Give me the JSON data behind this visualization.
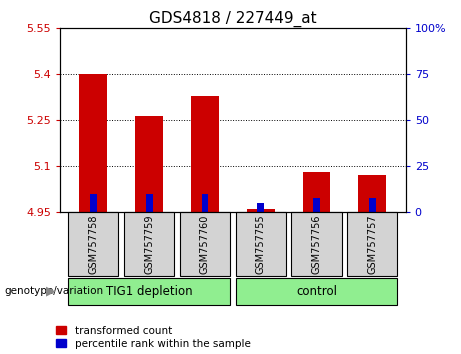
{
  "title": "GDS4818 / 227449_at",
  "samples": [
    "GSM757758",
    "GSM757759",
    "GSM757760",
    "GSM757755",
    "GSM757756",
    "GSM757757"
  ],
  "red_values": [
    5.4,
    5.265,
    5.33,
    4.962,
    5.082,
    5.072
  ],
  "blue_values_pct": [
    10,
    10,
    10,
    5,
    8,
    8
  ],
  "baseline": 4.95,
  "ylim_left": [
    4.95,
    5.55
  ],
  "ylim_right": [
    0,
    100
  ],
  "yticks_left": [
    4.95,
    5.1,
    5.25,
    5.4,
    5.55
  ],
  "yticks_right": [
    0,
    25,
    50,
    75,
    100
  ],
  "ytick_labels_left": [
    "4.95",
    "5.1",
    "5.25",
    "5.4",
    "5.55"
  ],
  "ytick_labels_right": [
    "0",
    "25",
    "50",
    "75",
    "100%"
  ],
  "red_color": "#cc0000",
  "blue_color": "#0000cc",
  "bar_width": 0.5,
  "blue_bar_width": 0.12,
  "group_colors": [
    "#90ee90",
    "#90ee90"
  ],
  "xlabel_left": "genotype/variation",
  "legend_labels": [
    "transformed count",
    "percentile rank within the sample"
  ],
  "title_fontsize": 11,
  "tick_fontsize": 8,
  "groups_info": [
    {
      "label": "TIG1 depletion",
      "xstart": 0,
      "xend": 3
    },
    {
      "label": "control",
      "xstart": 3,
      "xend": 6
    }
  ]
}
